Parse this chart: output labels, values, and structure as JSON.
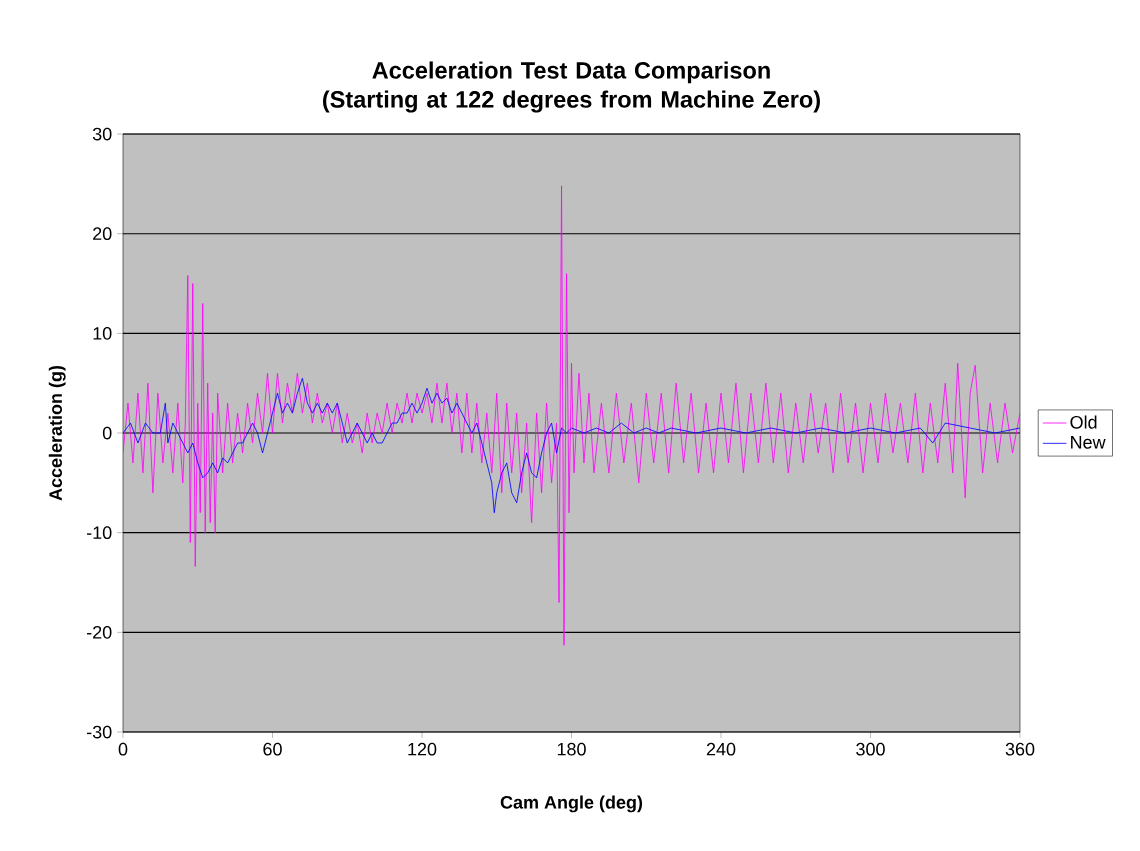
{
  "chart_data": {
    "type": "line",
    "title": "Acceleration Test Data Comparison (Starting at 122 degrees from Machine Zero)",
    "xlabel": "Cam Angle (deg)",
    "ylabel": "Acceleration (g)",
    "xlim": [
      0,
      360
    ],
    "ylim": [
      -30,
      30
    ],
    "xticks": [
      0,
      60,
      120,
      180,
      240,
      300,
      360
    ],
    "yticks": [
      -30,
      -20,
      -10,
      0,
      10,
      20,
      30
    ],
    "grid": "y",
    "legend": "right",
    "marker": "none",
    "series": [
      {
        "name": "Old",
        "color": "#ff00ff",
        "x": [
          0,
          2,
          4,
          6,
          8,
          10,
          12,
          14,
          16,
          18,
          20,
          22,
          24,
          25,
          26,
          27,
          28,
          29,
          30,
          31,
          32,
          33,
          34,
          35,
          36,
          37,
          38,
          40,
          42,
          44,
          46,
          48,
          50,
          52,
          54,
          56,
          58,
          60,
          62,
          64,
          66,
          68,
          70,
          72,
          74,
          76,
          78,
          80,
          82,
          84,
          86,
          88,
          90,
          92,
          94,
          96,
          98,
          100,
          102,
          104,
          106,
          108,
          110,
          112,
          114,
          116,
          118,
          120,
          122,
          124,
          126,
          128,
          130,
          132,
          134,
          136,
          138,
          140,
          142,
          144,
          146,
          148,
          150,
          152,
          154,
          156,
          158,
          160,
          162,
          164,
          166,
          168,
          170,
          172,
          174,
          175,
          176,
          177,
          178,
          179,
          180,
          181,
          183,
          185,
          187,
          189,
          192,
          195,
          198,
          201,
          204,
          207,
          210,
          213,
          216,
          219,
          222,
          225,
          228,
          231,
          234,
          237,
          240,
          243,
          246,
          249,
          252,
          255,
          258,
          261,
          264,
          267,
          270,
          273,
          276,
          279,
          282,
          285,
          288,
          291,
          294,
          297,
          300,
          303,
          306,
          309,
          312,
          315,
          318,
          321,
          324,
          327,
          330,
          333,
          335,
          338,
          340,
          342,
          345,
          348,
          351,
          354,
          357,
          360
        ],
        "values": [
          -2,
          3,
          -3,
          4,
          -4,
          5,
          -6,
          4,
          -3,
          2,
          -4,
          3,
          -5,
          1,
          15.8,
          -11,
          15,
          -13.4,
          3,
          -8,
          13,
          -10,
          5,
          -9,
          2,
          -10,
          4,
          -4,
          3,
          -3,
          2,
          -2,
          3,
          -1,
          4,
          0,
          6,
          0,
          6,
          1,
          5,
          2,
          6,
          2,
          5,
          1,
          4,
          1,
          3,
          0,
          3,
          -1,
          2,
          -1,
          1,
          -2,
          2,
          -1,
          2,
          0,
          3,
          0,
          3,
          1,
          4,
          1,
          4,
          2,
          4,
          1,
          5,
          1,
          5,
          0,
          4,
          -2,
          4,
          -2,
          3,
          -3,
          2,
          -4,
          4,
          -6,
          3,
          -4,
          2,
          -6,
          1,
          -9,
          2,
          -6,
          3,
          -5,
          1,
          -17,
          24.8,
          -21.3,
          16,
          -8,
          7,
          -4,
          6,
          -3,
          4,
          -4,
          3,
          -4,
          4,
          -3,
          3,
          -5,
          4,
          -3,
          4,
          -4,
          5,
          -3,
          4,
          -4,
          3,
          -4,
          4,
          -3,
          5,
          -4,
          4,
          -3,
          5,
          -3,
          4,
          -4,
          3,
          -3,
          4,
          -2,
          3,
          -4,
          4,
          -3,
          3,
          -4,
          3,
          -3,
          4,
          -2,
          3,
          -3,
          4,
          -4,
          3,
          -3,
          5,
          -4,
          7,
          -6.5,
          4,
          6.8,
          -4,
          3,
          -3,
          3,
          -2,
          2
        ]
      },
      {
        "name": "New",
        "color": "#0000ff",
        "x": [
          0,
          3,
          6,
          9,
          12,
          15,
          17,
          18,
          20,
          22,
          24,
          26,
          28,
          30,
          32,
          34,
          36,
          38,
          40,
          42,
          44,
          46,
          48,
          50,
          52,
          54,
          56,
          58,
          60,
          62,
          64,
          66,
          68,
          70,
          72,
          74,
          76,
          78,
          80,
          82,
          84,
          86,
          88,
          90,
          92,
          94,
          96,
          98,
          100,
          102,
          104,
          106,
          108,
          110,
          112,
          114,
          116,
          118,
          120,
          122,
          124,
          126,
          128,
          130,
          132,
          134,
          136,
          138,
          140,
          142,
          144,
          146,
          148,
          149,
          150,
          152,
          154,
          156,
          158,
          160,
          162,
          164,
          166,
          168,
          170,
          172,
          174,
          176,
          178,
          180,
          185,
          190,
          195,
          200,
          205,
          210,
          215,
          220,
          230,
          240,
          250,
          260,
          270,
          280,
          290,
          300,
          310,
          320,
          325,
          330,
          340,
          350,
          360
        ],
        "values": [
          0,
          1,
          -1,
          1,
          0,
          0,
          3,
          -1,
          1,
          0,
          -1,
          -2,
          -1,
          -3,
          -4.5,
          -4,
          -3,
          -4,
          -2.5,
          -3,
          -2,
          -1,
          -1,
          0,
          1,
          0,
          -2,
          0,
          2,
          4,
          2,
          3,
          2,
          4,
          5.5,
          3,
          2,
          3,
          2,
          3,
          2,
          3,
          1,
          -1,
          0,
          1,
          0,
          -1,
          0,
          -1,
          -1,
          0,
          1,
          1,
          2,
          2,
          3,
          2,
          3,
          4.5,
          3,
          4,
          3,
          3.5,
          2,
          3,
          2,
          1,
          0,
          1,
          -1,
          -3,
          -5,
          -8,
          -6,
          -4,
          -3,
          -6,
          -7,
          -4,
          -2,
          -4,
          -4.5,
          -2,
          0,
          1,
          -2,
          0.5,
          0,
          0.5,
          0,
          0.5,
          0,
          1,
          0,
          0.5,
          0,
          0.5,
          0,
          0.5,
          0,
          0.5,
          0,
          0.5,
          0,
          0.5,
          0,
          0.5,
          -1,
          1,
          0.5,
          0,
          0.5
        ]
      }
    ]
  }
}
